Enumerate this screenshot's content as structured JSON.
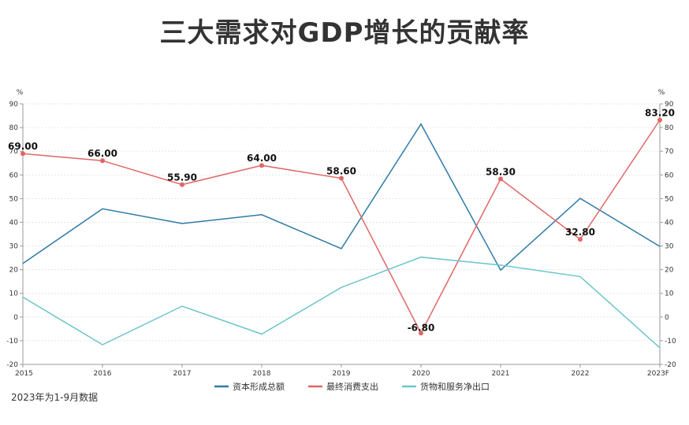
{
  "title": "三大需求对GDP增长的贡献率",
  "footnote": "2023年为1-9月数据",
  "chart_data": {
    "type": "line",
    "title": "三大需求对GDP增长的贡献率",
    "categories": [
      "2015",
      "2016",
      "2017",
      "2018",
      "2019",
      "2020",
      "2021",
      "2022",
      "2023F"
    ],
    "y_unit_left": "%",
    "y_unit_right": "%",
    "ylim": [
      -20,
      90
    ],
    "yticks": [
      -20,
      -10,
      0,
      10,
      20,
      30,
      40,
      50,
      60,
      70,
      80,
      90
    ],
    "grid": true,
    "legend_position": "bottom",
    "series": [
      {
        "name": "资本形成总额",
        "color": "#2e7aa8",
        "values": [
          22.6,
          45.7,
          39.5,
          43.2,
          28.9,
          81.5,
          19.8,
          50.1,
          29.8
        ]
      },
      {
        "name": "最终消费支出",
        "color": "#e06666",
        "values": [
          69.0,
          66.0,
          55.9,
          64.0,
          58.6,
          -6.8,
          58.3,
          32.8,
          83.2
        ],
        "data_labels": [
          "69.00",
          "66.00",
          "55.90",
          "64.00",
          "58.60",
          "-6.80",
          "58.30",
          "32.80",
          "83.20"
        ]
      },
      {
        "name": "货物和服务净出口",
        "color": "#6cc5cc",
        "values": [
          8.4,
          -11.7,
          4.6,
          -7.2,
          12.5,
          25.3,
          21.9,
          17.1,
          -13.0
        ]
      }
    ]
  }
}
